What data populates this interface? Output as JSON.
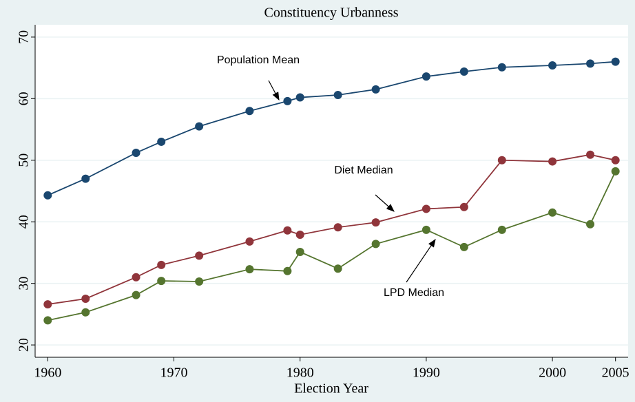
{
  "chart_data": {
    "type": "line",
    "title": "Constituency Urbanness",
    "x_label": "Election Year",
    "x": [
      1960,
      1963,
      1967,
      1969,
      1972,
      1976,
      1979,
      1980,
      1983,
      1986,
      1990,
      1993,
      1996,
      2000,
      2003,
      2005
    ],
    "series": [
      {
        "name": "Population Mean",
        "color": "#1a476f",
        "values": [
          44.3,
          47.0,
          51.2,
          53.0,
          55.5,
          58.0,
          59.6,
          60.2,
          60.6,
          61.5,
          63.6,
          64.4,
          65.1,
          65.4,
          65.7,
          66.0
        ]
      },
      {
        "name": "Diet Median",
        "color": "#90353b",
        "values": [
          26.6,
          27.5,
          31.0,
          33.0,
          34.5,
          36.8,
          38.6,
          37.9,
          39.1,
          39.9,
          42.1,
          42.4,
          50.0,
          49.8,
          50.9,
          50.0
        ]
      },
      {
        "name": "LPD Median",
        "color": "#55752f",
        "values": [
          24.0,
          25.3,
          28.1,
          30.4,
          30.3,
          32.3,
          32.0,
          35.1,
          32.4,
          36.4,
          38.7,
          35.9,
          38.7,
          41.5,
          39.6,
          48.2
        ]
      }
    ],
    "xlim": [
      1959,
      2006
    ],
    "ylim": [
      18,
      72
    ],
    "xticks": [
      1960,
      1970,
      1980,
      1990,
      2000,
      2005
    ],
    "yticks": [
      20,
      30,
      40,
      50,
      60,
      70
    ],
    "grid": true
  }
}
